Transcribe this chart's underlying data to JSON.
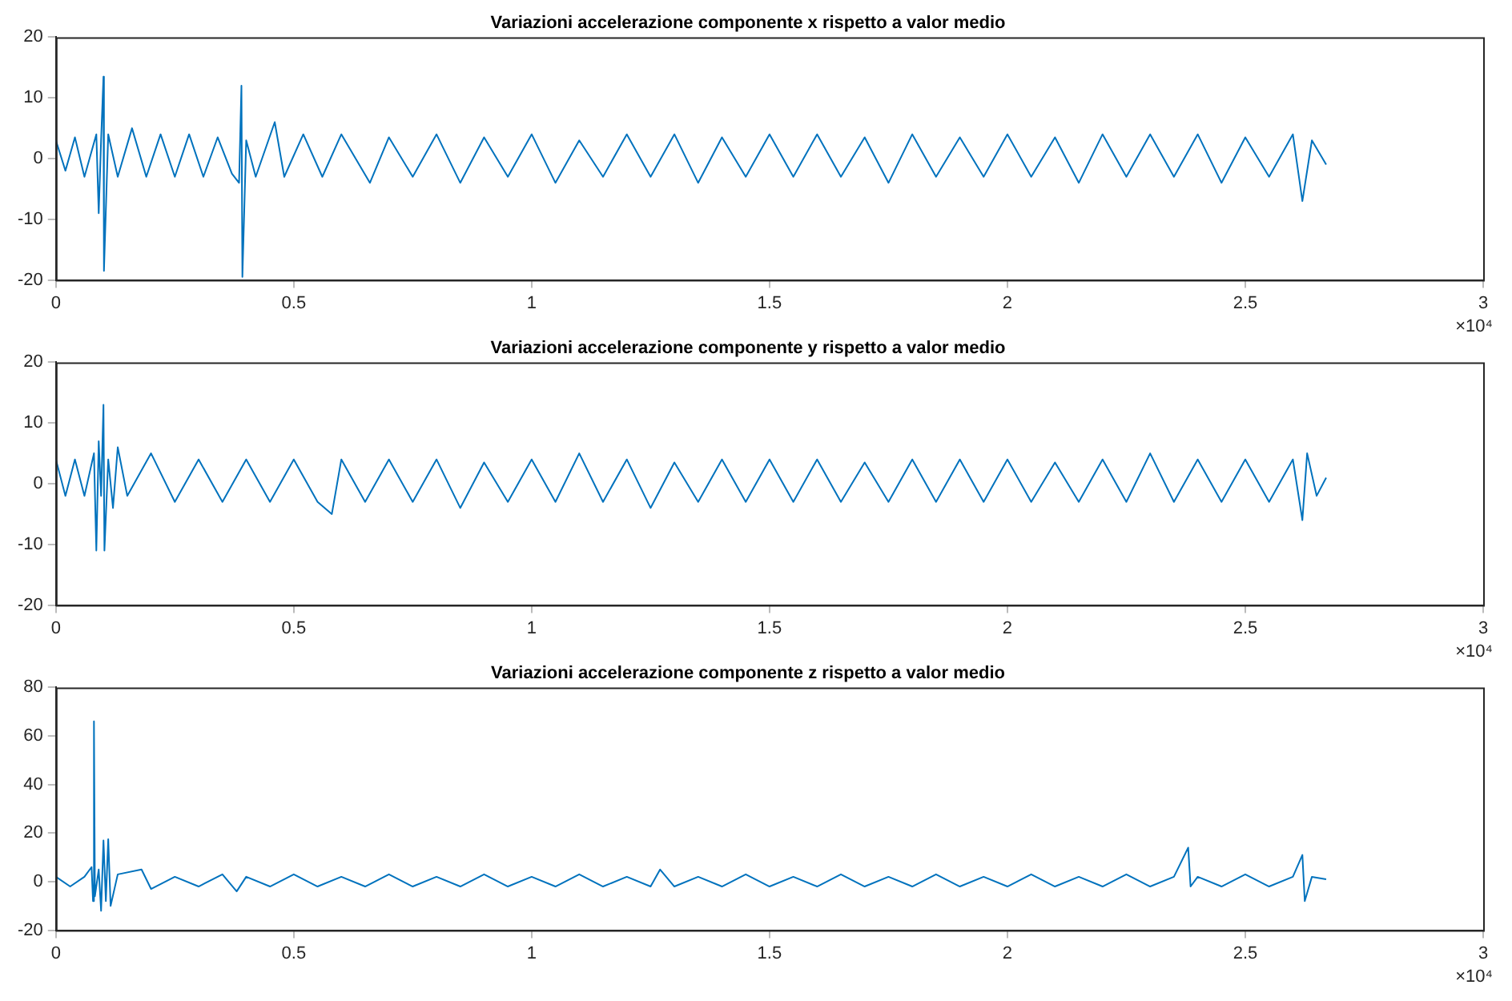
{
  "chart_data": [
    {
      "type": "line",
      "title": "Variazioni accelerazione componente x rispetto a valor medio",
      "marker": "none",
      "xlim": [
        0,
        3
      ],
      "xticks": [
        0,
        0.5,
        1,
        1.5,
        2,
        2.5,
        3
      ],
      "ylim": [
        -20,
        20
      ],
      "yticks": [
        -20,
        -10,
        0,
        10,
        20
      ],
      "annotations": [
        "×10⁴"
      ],
      "series": [
        {
          "color": "#0072bd",
          "x": [
            0,
            0.02,
            0.04,
            0.06,
            0.085,
            0.09,
            0.095,
            0.1,
            0.101,
            0.11,
            0.13,
            0.16,
            0.19,
            0.22,
            0.25,
            0.28,
            0.31,
            0.34,
            0.37,
            0.385,
            0.39,
            0.392,
            0.4,
            0.42,
            0.46,
            0.48,
            0.52,
            0.56,
            0.6,
            0.66,
            0.7,
            0.75,
            0.8,
            0.85,
            0.9,
            0.95,
            1,
            1.05,
            1.1,
            1.15,
            1.2,
            1.25,
            1.3,
            1.35,
            1.4,
            1.45,
            1.5,
            1.55,
            1.6,
            1.65,
            1.7,
            1.75,
            1.8,
            1.85,
            1.9,
            1.95,
            2,
            2.05,
            2.1,
            2.15,
            2.2,
            2.25,
            2.3,
            2.35,
            2.4,
            2.45,
            2.5,
            2.55,
            2.6,
            2.62,
            2.64,
            2.67
          ],
          "values": [
            3,
            -2,
            3.5,
            -3,
            4,
            -9,
            3,
            13.5,
            -18.5,
            4,
            -3,
            5,
            -3,
            4,
            -3,
            4,
            -3,
            3.5,
            -2.5,
            -4,
            12,
            -19.5,
            3,
            -3,
            6,
            -3,
            4,
            -3,
            4,
            -4,
            3.5,
            -3,
            4,
            -4,
            3.5,
            -3,
            4,
            -4,
            3,
            -3,
            4,
            -3,
            4,
            -4,
            3.5,
            -3,
            4,
            -3,
            4,
            -3,
            3.5,
            -4,
            4,
            -3,
            3.5,
            -3,
            4,
            -3,
            3.5,
            -4,
            4,
            -3,
            4,
            -3,
            4,
            -4,
            3.5,
            -3,
            4,
            -7,
            3,
            -1
          ]
        }
      ]
    },
    {
      "type": "line",
      "title": "Variazioni accelerazione componente y rispetto a valor medio",
      "marker": "none",
      "xlim": [
        0,
        3
      ],
      "xticks": [
        0,
        0.5,
        1,
        1.5,
        2,
        2.5,
        3
      ],
      "ylim": [
        -20,
        20
      ],
      "yticks": [
        -20,
        -10,
        0,
        10,
        20
      ],
      "annotations": [
        "×10⁴"
      ],
      "series": [
        {
          "color": "#0072bd",
          "x": [
            0,
            0.02,
            0.04,
            0.06,
            0.08,
            0.085,
            0.09,
            0.095,
            0.1,
            0.102,
            0.11,
            0.12,
            0.13,
            0.15,
            0.2,
            0.25,
            0.3,
            0.35,
            0.4,
            0.45,
            0.5,
            0.55,
            0.58,
            0.6,
            0.65,
            0.7,
            0.75,
            0.8,
            0.85,
            0.9,
            0.95,
            1,
            1.05,
            1.1,
            1.15,
            1.2,
            1.25,
            1.3,
            1.35,
            1.4,
            1.45,
            1.5,
            1.55,
            1.6,
            1.65,
            1.7,
            1.75,
            1.8,
            1.85,
            1.9,
            1.95,
            2,
            2.05,
            2.1,
            2.15,
            2.2,
            2.25,
            2.3,
            2.35,
            2.4,
            2.45,
            2.5,
            2.55,
            2.6,
            2.62,
            2.63,
            2.65,
            2.67
          ],
          "values": [
            4,
            -2,
            4,
            -2,
            5,
            -11,
            7,
            -2,
            13,
            -11,
            4,
            -4,
            6,
            -2,
            5,
            -3,
            4,
            -3,
            4,
            -3,
            4,
            -3,
            -5,
            4,
            -3,
            4,
            -3,
            4,
            -4,
            3.5,
            -3,
            4,
            -3,
            5,
            -3,
            4,
            -4,
            3.5,
            -3,
            4,
            -3,
            4,
            -3,
            4,
            -3,
            3.5,
            -3,
            4,
            -3,
            4,
            -3,
            4,
            -3,
            3.5,
            -3,
            4,
            -3,
            5,
            -3,
            4,
            -3,
            4,
            -3,
            4,
            -6,
            5,
            -2,
            1
          ]
        }
      ]
    },
    {
      "type": "line",
      "title": "Variazioni accelerazione componente z rispetto a valor medio",
      "marker": "none",
      "xlim": [
        0,
        3
      ],
      "xticks": [
        0,
        0.5,
        1,
        1.5,
        2,
        2.5,
        3
      ],
      "ylim": [
        -20,
        80
      ],
      "yticks": [
        -20,
        0,
        20,
        40,
        60,
        80
      ],
      "annotations": [
        "×10⁴"
      ],
      "series": [
        {
          "color": "#0072bd",
          "x": [
            0,
            0.03,
            0.06,
            0.075,
            0.078,
            0.08,
            0.082,
            0.09,
            0.095,
            0.1,
            0.105,
            0.11,
            0.115,
            0.13,
            0.18,
            0.2,
            0.25,
            0.3,
            0.35,
            0.38,
            0.4,
            0.45,
            0.5,
            0.55,
            0.6,
            0.65,
            0.7,
            0.75,
            0.8,
            0.85,
            0.9,
            0.95,
            1,
            1.05,
            1.1,
            1.15,
            1.2,
            1.25,
            1.27,
            1.3,
            1.35,
            1.4,
            1.45,
            1.5,
            1.55,
            1.6,
            1.65,
            1.7,
            1.75,
            1.8,
            1.85,
            1.9,
            1.95,
            2,
            2.05,
            2.1,
            2.15,
            2.2,
            2.25,
            2.3,
            2.35,
            2.38,
            2.385,
            2.4,
            2.45,
            2.5,
            2.55,
            2.6,
            2.62,
            2.625,
            2.64,
            2.67
          ],
          "values": [
            2,
            -2,
            2,
            6,
            -8,
            66,
            -6,
            5,
            -12,
            17,
            -8,
            17.5,
            -10,
            3,
            5,
            -3,
            2,
            -2,
            3,
            -4,
            2,
            -2,
            3,
            -2,
            2,
            -2,
            3,
            -2,
            2,
            -2,
            3,
            -2,
            2,
            -2,
            3,
            -2,
            2,
            -2,
            5,
            -2,
            2,
            -2,
            3,
            -2,
            2,
            -2,
            3,
            -2,
            2,
            -2,
            3,
            -2,
            2,
            -2,
            3,
            -2,
            2,
            -2,
            3,
            -2,
            2,
            14,
            -2,
            2,
            -2,
            3,
            -2,
            2,
            11,
            -8,
            2,
            1
          ]
        }
      ]
    }
  ]
}
